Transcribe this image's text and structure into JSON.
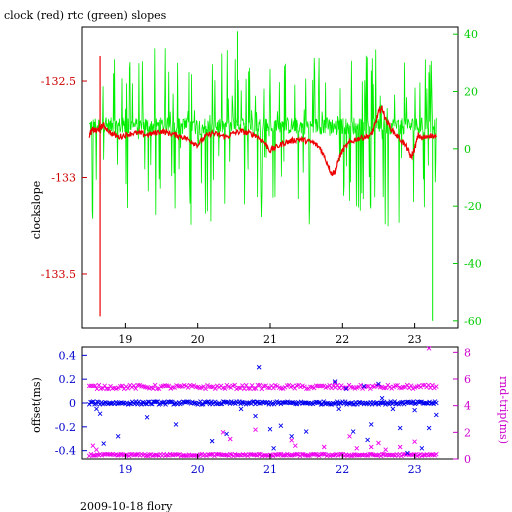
{
  "title": "clock (red) rtc (green) slopes",
  "footer": "2009-10-18 flory",
  "colors": {
    "clock": "#ee0000",
    "rtc": "#00ee00",
    "offset": "#0000ee",
    "rndtrip": "#ee00ee",
    "axis": "#000000",
    "left_ticks_top": "#cc0000",
    "right_ticks_top": "#00cc00",
    "left_ticks_bottom": "#0000cc",
    "right_ticks_bottom": "#cc00cc"
  },
  "chart_data": [
    {
      "type": "line",
      "title": "clock (red) rtc (green) slopes",
      "xlabel": "",
      "ylabel": "clockslope",
      "y2label": "",
      "xlim": [
        18.4,
        23.6
      ],
      "ylim": [
        -133.78,
        -132.22
      ],
      "y2lim": [
        -62.5,
        42.5
      ],
      "x_ticks": [
        19,
        20,
        21,
        22,
        23
      ],
      "x_tick_labels": [
        "19",
        "20",
        "21",
        "22",
        "23"
      ],
      "y_ticks": [
        -132.5,
        -133,
        -133.5
      ],
      "y_tick_labels": [
        "-132.5",
        "-133",
        "-133.5"
      ],
      "y2_ticks": [
        40,
        20,
        0,
        -20,
        -40,
        -60
      ],
      "y2_tick_labels": [
        "40",
        "20",
        "0",
        "-20",
        "-40",
        "-60"
      ],
      "grid": false,
      "series": [
        {
          "name": "clock",
          "axis": "left",
          "x": [
            18.5,
            18.55,
            18.6,
            18.65,
            18.7,
            18.8,
            18.9,
            19.0,
            19.1,
            19.2,
            19.3,
            19.4,
            19.5,
            19.6,
            19.7,
            19.8,
            19.9,
            20.0,
            20.1,
            20.2,
            20.3,
            20.4,
            20.5,
            20.6,
            20.7,
            20.8,
            20.9,
            21.0,
            21.1,
            21.2,
            21.3,
            21.4,
            21.5,
            21.6,
            21.7,
            21.8,
            21.85,
            21.9,
            21.95,
            22.0,
            22.1,
            22.2,
            22.3,
            22.4,
            22.45,
            22.5,
            22.55,
            22.6,
            22.7,
            22.8,
            22.9,
            22.95,
            23.0,
            23.05,
            23.1,
            23.2,
            23.3
          ],
          "values": [
            -132.78,
            -132.75,
            -132.76,
            -132.74,
            -132.73,
            -132.77,
            -132.79,
            -132.78,
            -132.77,
            -132.77,
            -132.78,
            -132.77,
            -132.76,
            -132.77,
            -132.78,
            -132.79,
            -132.81,
            -132.83,
            -132.79,
            -132.77,
            -132.78,
            -132.79,
            -132.77,
            -132.76,
            -132.77,
            -132.78,
            -132.81,
            -132.86,
            -132.84,
            -132.82,
            -132.81,
            -132.8,
            -132.81,
            -132.82,
            -132.85,
            -132.93,
            -132.98,
            -132.97,
            -132.9,
            -132.86,
            -132.82,
            -132.8,
            -132.79,
            -132.78,
            -132.73,
            -132.66,
            -132.64,
            -132.7,
            -132.76,
            -132.8,
            -132.85,
            -132.9,
            -132.85,
            -132.78,
            -132.8,
            -132.78,
            -132.79
          ]
        },
        {
          "name": "clock spike",
          "axis": "left",
          "x": [
            18.65,
            18.65
          ],
          "values": [
            -132.37,
            -133.72
          ]
        },
        {
          "name": "rtc",
          "axis": "right",
          "x_range": [
            18.5,
            23.3
          ],
          "baseline": 8,
          "typical_range": [
            -15,
            30
          ],
          "extremes": [
            -60,
            42,
            -25,
            -20,
            35,
            28
          ]
        }
      ]
    },
    {
      "type": "scatter",
      "xlabel": "",
      "ylabel": "offset(ms)",
      "y2label": "rnd-trip(ms)",
      "xlim": [
        18.4,
        23.6
      ],
      "ylim": [
        -0.47,
        0.47
      ],
      "y2lim": [
        0,
        8.4
      ],
      "x_ticks": [
        19,
        20,
        21,
        22,
        23
      ],
      "x_tick_labels": [
        "19",
        "20",
        "21",
        "22",
        "23"
      ],
      "y_ticks": [
        0.4,
        0.2,
        0,
        -0.2,
        -0.4
      ],
      "y_tick_labels": [
        "0.4",
        "0.2",
        "0",
        "-0.2",
        "-0.4"
      ],
      "y2_ticks": [
        8,
        6,
        4,
        2,
        0
      ],
      "y2_tick_labels": [
        "8",
        "6",
        "4",
        "2",
        "0"
      ],
      "grid": false,
      "series": [
        {
          "name": "offset",
          "axis": "left",
          "x_range": [
            18.5,
            23.3
          ],
          "baseline": 0.0,
          "outliers": [
            [
              18.6,
              -0.05
            ],
            [
              18.65,
              -0.09
            ],
            [
              18.7,
              -0.34
            ],
            [
              18.9,
              -0.28
            ],
            [
              19.3,
              -0.12
            ],
            [
              19.7,
              -0.18
            ],
            [
              20.2,
              -0.32
            ],
            [
              20.4,
              -0.26
            ],
            [
              20.6,
              -0.05
            ],
            [
              20.8,
              -0.11
            ],
            [
              20.85,
              0.3
            ],
            [
              21.0,
              -0.22
            ],
            [
              21.05,
              -0.38
            ],
            [
              21.15,
              -0.19
            ],
            [
              21.3,
              -0.28
            ],
            [
              21.5,
              -0.24
            ],
            [
              21.9,
              0.18
            ],
            [
              21.95,
              -0.05
            ],
            [
              22.05,
              0.12
            ],
            [
              22.15,
              -0.24
            ],
            [
              22.3,
              0.14
            ],
            [
              22.35,
              -0.31
            ],
            [
              22.4,
              -0.18
            ],
            [
              22.5,
              0.16
            ],
            [
              22.55,
              0.04
            ],
            [
              22.7,
              -0.05
            ],
            [
              22.8,
              -0.21
            ],
            [
              22.9,
              -0.42
            ],
            [
              23.0,
              -0.06
            ],
            [
              23.1,
              -0.38
            ],
            [
              23.2,
              -0.21
            ],
            [
              23.3,
              -0.1
            ]
          ]
        },
        {
          "name": "rnd-trip",
          "axis": "right",
          "x_range": [
            18.5,
            23.3
          ],
          "baseline": 5.4,
          "low_baseline": 0.3,
          "outliers": [
            [
              18.55,
              1.0
            ],
            [
              18.6,
              0.7
            ],
            [
              20.35,
              2.0
            ],
            [
              20.45,
              1.5
            ],
            [
              20.8,
              2.2
            ],
            [
              21.3,
              1.4
            ],
            [
              21.35,
              1.0
            ],
            [
              21.75,
              0.9
            ],
            [
              21.9,
              5.7
            ],
            [
              22.1,
              1.7
            ],
            [
              22.2,
              0.8
            ],
            [
              22.4,
              0.9
            ],
            [
              22.5,
              1.2
            ],
            [
              22.6,
              0.7
            ],
            [
              22.8,
              0.9
            ],
            [
              23.0,
              1.3
            ],
            [
              23.2,
              8.3
            ]
          ]
        }
      ]
    }
  ]
}
